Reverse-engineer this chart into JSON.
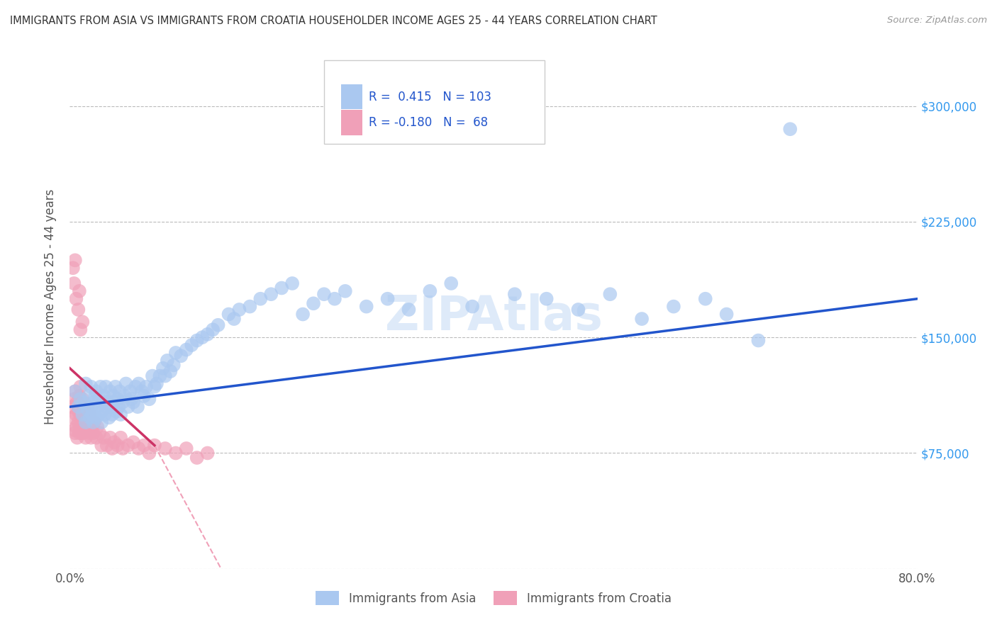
{
  "title": "IMMIGRANTS FROM ASIA VS IMMIGRANTS FROM CROATIA HOUSEHOLDER INCOME AGES 25 - 44 YEARS CORRELATION CHART",
  "source": "Source: ZipAtlas.com",
  "ylabel": "Householder Income Ages 25 - 44 years",
  "xlim": [
    0.0,
    0.8
  ],
  "ylim": [
    0,
    340000
  ],
  "yticks": [
    0,
    75000,
    150000,
    225000,
    300000
  ],
  "xticks": [
    0.0,
    0.1,
    0.2,
    0.3,
    0.4,
    0.5,
    0.6,
    0.7,
    0.8
  ],
  "xtick_labels": [
    "0.0%",
    "",
    "",
    "",
    "",
    "",
    "",
    "",
    "80.0%"
  ],
  "ytick_labels_right": [
    "",
    "$75,000",
    "$150,000",
    "$225,000",
    "$300,000"
  ],
  "asia_color": "#aac8f0",
  "croatia_color": "#f0a0b8",
  "asia_line_color": "#2255cc",
  "croatia_line_solid_color": "#cc3366",
  "croatia_line_dash_color": "#f0a0b8",
  "asia_R": 0.415,
  "asia_N": 103,
  "croatia_R": -0.18,
  "croatia_N": 68,
  "watermark": "ZIPAtlas",
  "background_color": "#ffffff",
  "asia_scatter_x": [
    0.005,
    0.008,
    0.01,
    0.012,
    0.013,
    0.015,
    0.015,
    0.017,
    0.018,
    0.019,
    0.02,
    0.02,
    0.021,
    0.022,
    0.023,
    0.024,
    0.025,
    0.025,
    0.026,
    0.027,
    0.028,
    0.029,
    0.03,
    0.03,
    0.031,
    0.032,
    0.033,
    0.034,
    0.035,
    0.036,
    0.037,
    0.038,
    0.039,
    0.04,
    0.041,
    0.042,
    0.043,
    0.044,
    0.045,
    0.046,
    0.047,
    0.048,
    0.05,
    0.052,
    0.053,
    0.055,
    0.057,
    0.058,
    0.06,
    0.062,
    0.064,
    0.065,
    0.068,
    0.07,
    0.072,
    0.075,
    0.078,
    0.08,
    0.082,
    0.085,
    0.088,
    0.09,
    0.092,
    0.095,
    0.098,
    0.1,
    0.105,
    0.11,
    0.115,
    0.12,
    0.125,
    0.13,
    0.135,
    0.14,
    0.15,
    0.155,
    0.16,
    0.17,
    0.18,
    0.19,
    0.2,
    0.21,
    0.22,
    0.23,
    0.24,
    0.25,
    0.26,
    0.28,
    0.3,
    0.32,
    0.34,
    0.36,
    0.38,
    0.42,
    0.45,
    0.48,
    0.51,
    0.54,
    0.57,
    0.6,
    0.62,
    0.65,
    0.68
  ],
  "asia_scatter_y": [
    115000,
    105000,
    110000,
    100000,
    108000,
    120000,
    95000,
    103000,
    112000,
    98000,
    105000,
    118000,
    100000,
    95000,
    108000,
    112000,
    98000,
    115000,
    105000,
    100000,
    110000,
    118000,
    102000,
    95000,
    108000,
    112000,
    100000,
    118000,
    105000,
    108000,
    98000,
    115000,
    105000,
    100000,
    112000,
    108000,
    118000,
    102000,
    110000,
    105000,
    115000,
    100000,
    108000,
    112000,
    120000,
    105000,
    115000,
    110000,
    108000,
    118000,
    105000,
    120000,
    115000,
    112000,
    118000,
    110000,
    125000,
    118000,
    120000,
    125000,
    130000,
    125000,
    135000,
    128000,
    132000,
    140000,
    138000,
    142000,
    145000,
    148000,
    150000,
    152000,
    155000,
    158000,
    165000,
    162000,
    168000,
    170000,
    175000,
    178000,
    182000,
    185000,
    165000,
    172000,
    178000,
    175000,
    180000,
    170000,
    175000,
    168000,
    180000,
    185000,
    170000,
    178000,
    175000,
    168000,
    178000,
    162000,
    170000,
    175000,
    165000,
    148000,
    285000
  ],
  "croatia_scatter_x": [
    0.002,
    0.003,
    0.004,
    0.004,
    0.005,
    0.005,
    0.006,
    0.006,
    0.007,
    0.007,
    0.008,
    0.008,
    0.009,
    0.009,
    0.01,
    0.01,
    0.01,
    0.011,
    0.011,
    0.012,
    0.012,
    0.013,
    0.013,
    0.014,
    0.014,
    0.015,
    0.015,
    0.016,
    0.016,
    0.017,
    0.018,
    0.018,
    0.019,
    0.02,
    0.021,
    0.022,
    0.023,
    0.025,
    0.026,
    0.028,
    0.03,
    0.032,
    0.035,
    0.038,
    0.04,
    0.042,
    0.045,
    0.048,
    0.05,
    0.055,
    0.06,
    0.065,
    0.07,
    0.075,
    0.08,
    0.09,
    0.1,
    0.11,
    0.12,
    0.13,
    0.003,
    0.004,
    0.005,
    0.006,
    0.008,
    0.009,
    0.01,
    0.012
  ],
  "croatia_scatter_y": [
    105000,
    98000,
    110000,
    90000,
    115000,
    88000,
    100000,
    92000,
    108000,
    85000,
    102000,
    95000,
    112000,
    88000,
    100000,
    92000,
    118000,
    105000,
    88000,
    110000,
    92000,
    100000,
    88000,
    105000,
    92000,
    98000,
    85000,
    100000,
    92000,
    105000,
    88000,
    95000,
    100000,
    85000,
    92000,
    88000,
    95000,
    85000,
    92000,
    88000,
    80000,
    85000,
    80000,
    85000,
    78000,
    82000,
    80000,
    85000,
    78000,
    80000,
    82000,
    78000,
    80000,
    75000,
    80000,
    78000,
    75000,
    78000,
    72000,
    75000,
    195000,
    185000,
    200000,
    175000,
    168000,
    180000,
    155000,
    160000
  ]
}
